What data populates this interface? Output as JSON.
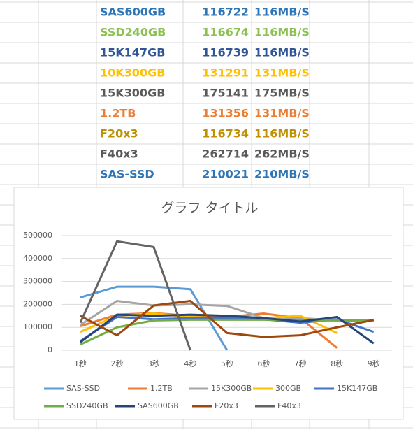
{
  "table": {
    "rows": [
      {
        "label": "SAS600GB",
        "value": "116722",
        "speed": "116MB/S",
        "color": "#2e75b6"
      },
      {
        "label": "SSD240GB",
        "value": "116674",
        "speed": "116MB/S",
        "color": "#8cc152"
      },
      {
        "label": "15K147GB",
        "value": "116739",
        "speed": "116MB/S",
        "color": "#2f5597"
      },
      {
        "label": "10K300GB",
        "value": "131291",
        "speed": "131MB/S",
        "color": "#ffc000"
      },
      {
        "label": "15K300GB",
        "value": "175141",
        "speed": "175MB/S",
        "color": "#595959"
      },
      {
        "label": "1.2TB",
        "value": "131356",
        "speed": "131MB/S",
        "color": "#ed7d31"
      },
      {
        "label": "F20x3",
        "value": "116734",
        "speed": "116MB/S",
        "color": "#bf9000"
      },
      {
        "label": "F40x3",
        "value": "262714",
        "speed": "262MB/S",
        "color": "#595959"
      },
      {
        "label": "SAS-SSD",
        "value": "210021",
        "speed": "210MB/S",
        "color": "#2e75b6"
      }
    ]
  },
  "chart_data": {
    "type": "line",
    "title": "グラフ タイトル",
    "categories": [
      "1秒",
      "2秒",
      "3秒",
      "4秒",
      "5秒",
      "6秒",
      "7秒",
      "8秒",
      "9秒"
    ],
    "ylim": [
      0,
      500000
    ],
    "yticks": [
      0,
      100000,
      200000,
      300000,
      400000,
      500000
    ],
    "grid": true,
    "legend": "bottom",
    "series": [
      {
        "name": "SAS-SSD",
        "color": "#5b9bd5",
        "values": [
          230000,
          277000,
          277000,
          266000,
          0,
          null,
          null,
          null,
          null
        ]
      },
      {
        "name": "1.2TB",
        "color": "#ed7d31",
        "values": [
          105000,
          155000,
          162000,
          150000,
          145000,
          160000,
          140000,
          10000,
          null
        ]
      },
      {
        "name": "15K300GB",
        "color": "#a5a5a5",
        "values": [
          110000,
          215000,
          195000,
          200000,
          193000,
          140000,
          140000,
          130000,
          130000
        ]
      },
      {
        "name": "300GB",
        "color": "#ffc000",
        "values": [
          80000,
          150000,
          160000,
          145000,
          140000,
          140000,
          150000,
          75000,
          null
        ]
      },
      {
        "name": "15K147GB",
        "color": "#4472c4",
        "values": [
          40000,
          145000,
          135000,
          140000,
          140000,
          135000,
          120000,
          135000,
          80000
        ]
      },
      {
        "name": "SSD240GB",
        "color": "#70ad47",
        "values": [
          25000,
          100000,
          130000,
          133000,
          133000,
          133000,
          130000,
          130000,
          130000
        ]
      },
      {
        "name": "SAS600GB",
        "color": "#264478",
        "values": [
          35000,
          155000,
          150000,
          155000,
          150000,
          140000,
          125000,
          145000,
          30000
        ]
      },
      {
        "name": "F20x3",
        "color": "#9e480e",
        "values": [
          150000,
          65000,
          195000,
          215000,
          75000,
          58000,
          65000,
          100000,
          132000
        ]
      },
      {
        "name": "F40x3",
        "color": "#636363",
        "values": [
          120000,
          475000,
          450000,
          0,
          null,
          null,
          null,
          null,
          null
        ]
      }
    ]
  }
}
